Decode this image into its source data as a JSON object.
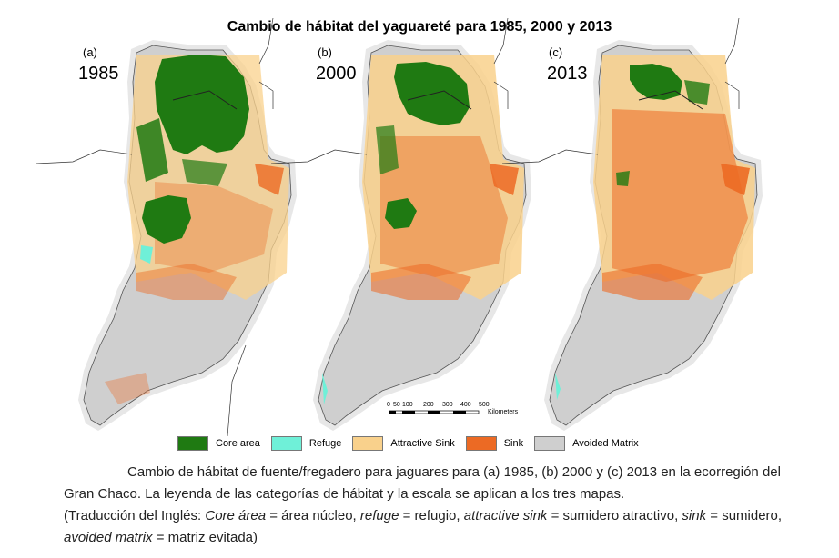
{
  "title": "Cambio de hábitat del yaguareté para 1985, 2000 y 2013",
  "panels": [
    {
      "letter": "(a)",
      "year": "1985"
    },
    {
      "letter": "(b)",
      "year": "2000"
    },
    {
      "letter": "(c)",
      "year": "2013"
    }
  ],
  "legend": [
    {
      "label": "Core area",
      "color": "#1f7a12"
    },
    {
      "label": "Refuge",
      "color": "#6ff0d8"
    },
    {
      "label": "Attractive Sink",
      "color": "#f9d18c"
    },
    {
      "label": "Sink",
      "color": "#ec6a24"
    },
    {
      "label": "Avoided Matrix",
      "color": "#cfcfcf"
    }
  ],
  "scale_bar": {
    "ticks": [
      "0",
      "50",
      "100",
      "200",
      "300",
      "400",
      "500"
    ],
    "unit": "Kilometers"
  },
  "caption": {
    "line1": "Cambio de hábitat de fuente/fregadero para jaguares para (a) 1985, (b) 2000 y (c) 2013 en la ecorregión del Gran Chaco. La leyenda de las categorías de hábitat y la escala se aplican a los tres mapas.",
    "translation_prefix": "(Traducción del Inglés: ",
    "t1_term": "Core área",
    "t1_def": " = área núcleo, ",
    "t2_term": "refuge",
    "t2_def": " = refugio, ",
    "t3_term": "attractive sink",
    "t3_def": " = sumidero atractivo, ",
    "t4_term": "sink",
    "t4_def": " = sumidero, ",
    "t5_term": "avoided matrix",
    "t5_def": " = matriz evitada)"
  }
}
